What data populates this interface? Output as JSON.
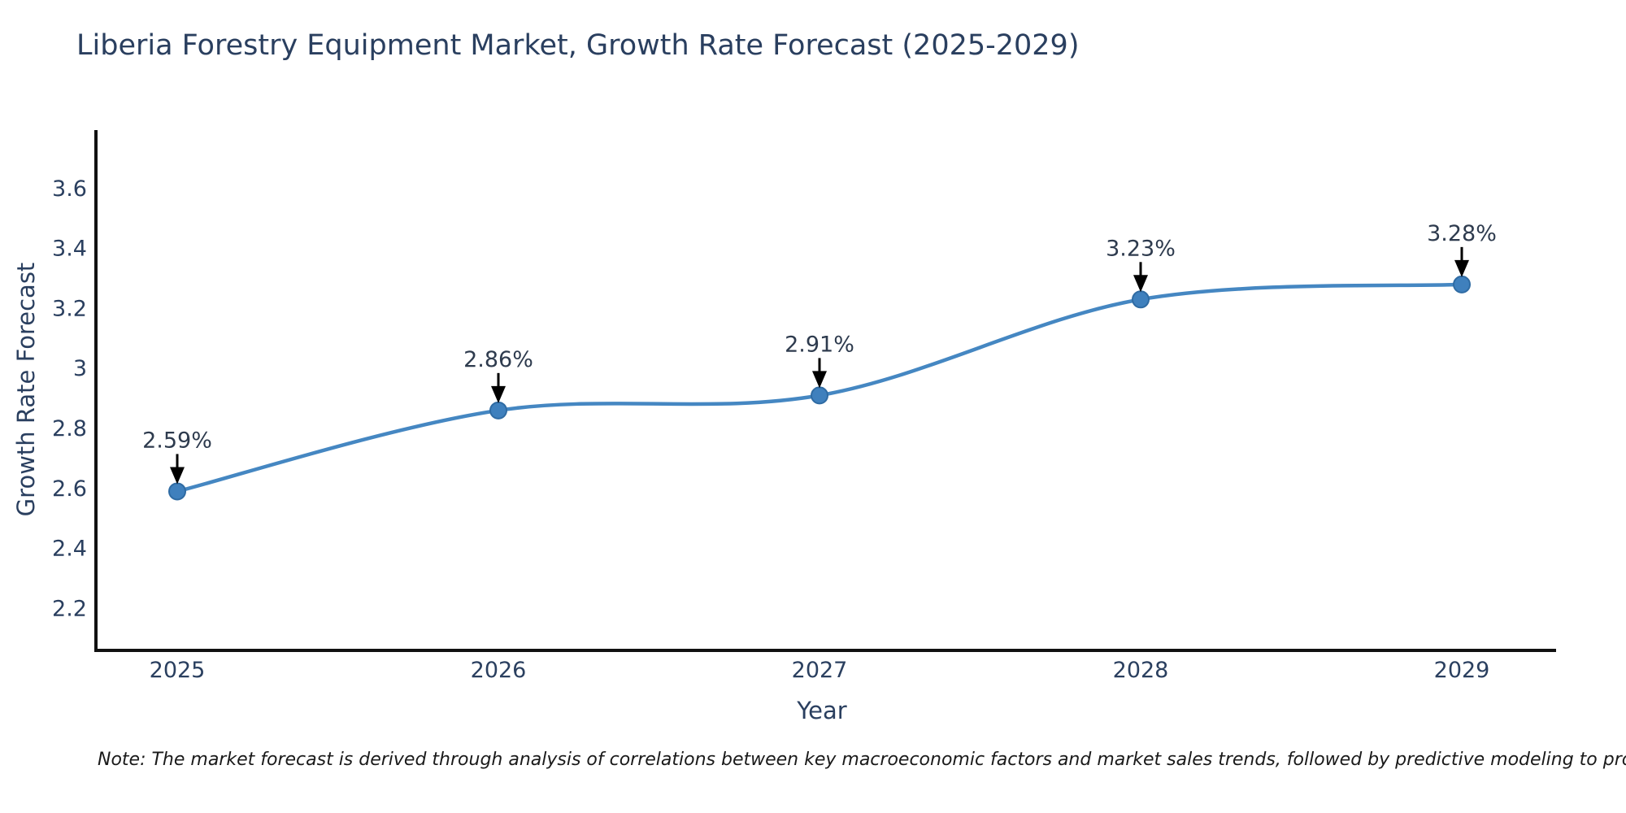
{
  "title": "Liberia Forestry Equipment Market, Growth Rate Forecast (2025-2029)",
  "note": "Note: The market forecast is derived through analysis of correlations between key macroeconomic factors and market sales trends, followed by predictive modeling to project future sales",
  "chart_data": {
    "type": "line",
    "title": "Liberia Forestry Equipment Market, Growth Rate Forecast (2025-2029)",
    "xlabel": "Year",
    "ylabel": "Growth Rate Forecast",
    "x": [
      2025,
      2026,
      2027,
      2028,
      2029
    ],
    "categories": [
      "2025",
      "2026",
      "2027",
      "2028",
      "2029"
    ],
    "series": [
      {
        "name": "Growth Rate Forecast",
        "values": [
          2.59,
          2.86,
          2.91,
          3.23,
          3.28
        ],
        "point_labels": [
          "2.59%",
          "2.86%",
          "2.91%",
          "3.23%",
          "3.28%"
        ]
      }
    ],
    "line_shape": "spline",
    "markers": true,
    "annotations_arrows": true,
    "grid": false,
    "legend_position": "none",
    "ylim": [
      2.06,
      3.8
    ],
    "yticks": [
      3.6,
      3.4,
      3.2,
      3.0,
      2.8,
      2.6,
      2.4,
      2.2
    ],
    "ytick_labels": [
      "3.6",
      "3.4",
      "3.2",
      "3",
      "2.8",
      "2.6",
      "2.4",
      "2.2"
    ],
    "xtick_labels": [
      "2025",
      "2026",
      "2027",
      "2028",
      "2029"
    ],
    "colors": {
      "line": "#4587c2",
      "marker_fill": "#3f80bd",
      "marker_border": "#2f6ba3",
      "arrow": "#000000",
      "axis_line": "#111111",
      "text": "#2a3f5f",
      "background": "#ffffff"
    }
  }
}
